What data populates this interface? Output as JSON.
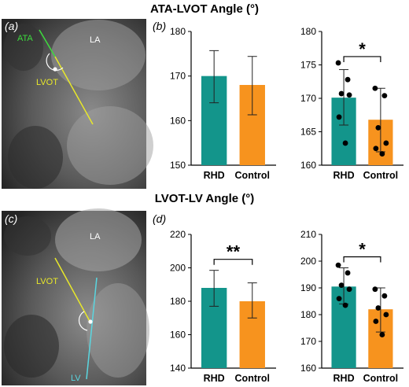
{
  "titles": {
    "top": "ATA-LVOT Angle (°)",
    "bottom": "LVOT-LV Angle (°)"
  },
  "panels": {
    "a": {
      "label": "(a)",
      "annotations": {
        "ata": "ATA",
        "lvot": "LVOT",
        "la": "LA"
      }
    },
    "b": {
      "label": "(b)"
    },
    "c": {
      "label": "(c)",
      "annotations": {
        "lvot": "LVOT",
        "la": "LA",
        "lv": "LV"
      }
    },
    "d": {
      "label": "(d)"
    }
  },
  "colors": {
    "rhd": "#13958b",
    "control": "#f7931e",
    "ata_line": "#3ddc3d",
    "lvot_line": "#e8e82a",
    "lv_line": "#5ad6e0"
  },
  "chart_data": [
    {
      "id": "b1",
      "type": "bar",
      "categories": [
        "RHD",
        "Control"
      ],
      "values": [
        170,
        168
      ],
      "errors": [
        [
          164,
          175.7
        ],
        [
          161.3,
          174.4
        ]
      ],
      "ylim": [
        150,
        180
      ],
      "yticks": [
        150,
        160,
        170,
        180
      ],
      "significance": ""
    },
    {
      "id": "b2",
      "type": "bar",
      "categories": [
        "RHD",
        "Control"
      ],
      "values": [
        170.1,
        166.8
      ],
      "errors": [
        [
          166,
          174.3
        ],
        [
          162,
          171.5
        ]
      ],
      "points": [
        [
          175.3,
          172.8,
          170.7,
          170.5,
          167.2,
          163.3
        ],
        [
          171.5,
          170.4,
          165.6,
          163.3,
          162.5,
          161.7
        ]
      ],
      "ylim": [
        160,
        180
      ],
      "yticks": [
        160,
        165,
        170,
        175,
        180
      ],
      "significance": "*"
    },
    {
      "id": "d1",
      "type": "bar",
      "categories": [
        "RHD",
        "Control"
      ],
      "values": [
        188,
        180
      ],
      "errors": [
        [
          177,
          198.5
        ],
        [
          170,
          191
        ]
      ],
      "ylim": [
        140,
        220
      ],
      "yticks": [
        140,
        160,
        180,
        200,
        220
      ],
      "significance": "**"
    },
    {
      "id": "d2",
      "type": "bar",
      "categories": [
        "RHD",
        "Control"
      ],
      "values": [
        190.5,
        182
      ],
      "errors": [
        [
          184,
          197.5
        ],
        [
          173.5,
          190
        ]
      ],
      "points": [
        [
          198.5,
          195.6,
          191,
          189.5,
          186,
          183.5
        ],
        [
          189.5,
          187,
          182.5,
          180,
          177.5,
          172.5
        ]
      ],
      "ylim": [
        160,
        210
      ],
      "yticks": [
        160,
        170,
        180,
        190,
        200,
        210
      ],
      "significance": "*"
    }
  ]
}
